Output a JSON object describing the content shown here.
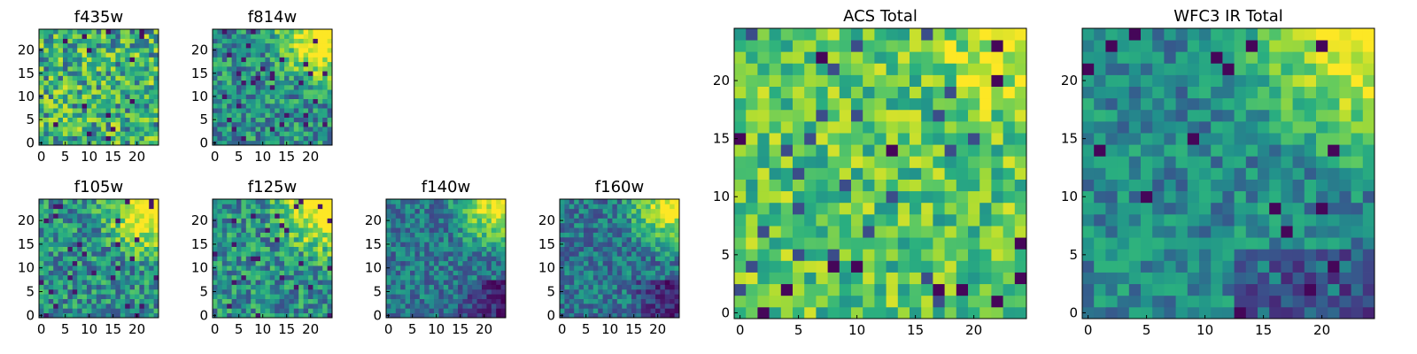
{
  "chart_data": [
    {
      "type": "heatmap",
      "title": "f435w",
      "grid_size": 25,
      "xlim": [
        -0.5,
        24.5
      ],
      "ylim": [
        -0.5,
        24.5
      ],
      "xticks": [
        0,
        5,
        10,
        15,
        20
      ],
      "yticks": [
        0,
        5,
        10,
        15,
        20
      ],
      "colormap": "viridis",
      "pattern": "noise",
      "seed": 11
    },
    {
      "type": "heatmap",
      "title": "f814w",
      "grid_size": 25,
      "xlim": [
        -0.5,
        24.5
      ],
      "ylim": [
        -0.5,
        24.5
      ],
      "xticks": [
        0,
        5,
        10,
        15,
        20
      ],
      "yticks": [
        0,
        5,
        10,
        15,
        20
      ],
      "colormap": "viridis",
      "pattern": "corner-bright-top-right",
      "seed": 23
    },
    {
      "type": "heatmap",
      "title": "f105w",
      "grid_size": 25,
      "xlim": [
        -0.5,
        24.5
      ],
      "ylim": [
        -0.5,
        24.5
      ],
      "xticks": [
        0,
        5,
        10,
        15,
        20
      ],
      "yticks": [
        0,
        5,
        10,
        15,
        20
      ],
      "colormap": "viridis",
      "pattern": "corner-bright-top-right",
      "seed": 37
    },
    {
      "type": "heatmap",
      "title": "f125w",
      "grid_size": 25,
      "xlim": [
        -0.5,
        24.5
      ],
      "ylim": [
        -0.5,
        24.5
      ],
      "xticks": [
        0,
        5,
        10,
        15,
        20
      ],
      "yticks": [
        0,
        5,
        10,
        15,
        20
      ],
      "colormap": "viridis",
      "pattern": "corner-bright-top-right",
      "seed": 41
    },
    {
      "type": "heatmap",
      "title": "f140w",
      "grid_size": 25,
      "xlim": [
        -0.5,
        24.5
      ],
      "ylim": [
        -0.5,
        24.5
      ],
      "xticks": [
        0,
        5,
        10,
        15,
        20
      ],
      "yticks": [
        0,
        5,
        10,
        15,
        20
      ],
      "colormap": "viridis",
      "pattern": "gradient-top-right-dark-bottom-right",
      "seed": 53
    },
    {
      "type": "heatmap",
      "title": "f160w",
      "grid_size": 25,
      "xlim": [
        -0.5,
        24.5
      ],
      "ylim": [
        -0.5,
        24.5
      ],
      "xticks": [
        0,
        5,
        10,
        15,
        20
      ],
      "yticks": [
        0,
        5,
        10,
        15,
        20
      ],
      "colormap": "viridis",
      "pattern": "gradient-top-right-dark-bottom-right",
      "seed": 67
    },
    {
      "type": "heatmap",
      "title": "ACS Total",
      "grid_size": 25,
      "xlim": [
        -0.5,
        24.5
      ],
      "ylim": [
        -0.5,
        24.5
      ],
      "xticks": [
        0,
        5,
        10,
        15,
        20
      ],
      "yticks": [
        0,
        5,
        10,
        15,
        20
      ],
      "colormap": "viridis",
      "pattern": "bright-noise-top-right",
      "seed": 79
    },
    {
      "type": "heatmap",
      "title": "WFC3 IR Total",
      "grid_size": 25,
      "xlim": [
        -0.5,
        24.5
      ],
      "ylim": [
        -0.5,
        24.5
      ],
      "xticks": [
        0,
        5,
        10,
        15,
        20
      ],
      "yticks": [
        0,
        5,
        10,
        15,
        20
      ],
      "colormap": "viridis",
      "pattern": "corner-bright-top-right-dark-bottom",
      "seed": 97
    }
  ]
}
